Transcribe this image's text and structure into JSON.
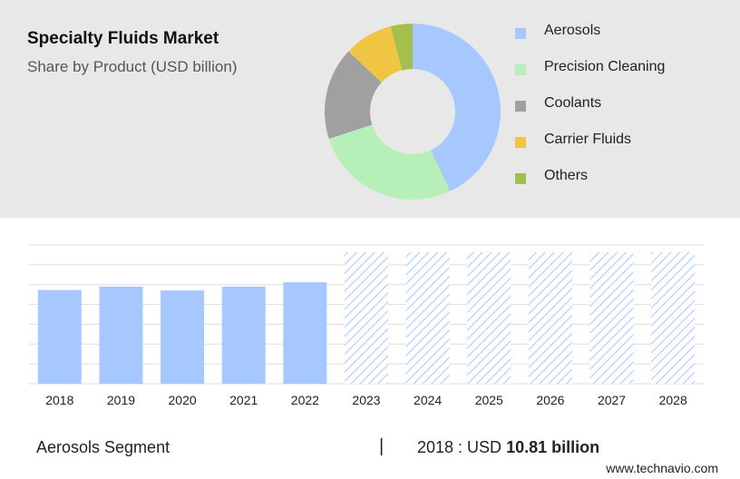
{
  "header": {
    "title": "Specialty Fluids Market",
    "subtitle": "Share by Product (USD billion)"
  },
  "chart_data": [
    {
      "type": "pie",
      "style": "donut",
      "title": "Specialty Fluids Market",
      "subtitle": "Share by Product (USD billion)",
      "legend_position": "right",
      "slices": [
        {
          "label": "Aerosols",
          "value": 43,
          "color": "#a6c8ff"
        },
        {
          "label": "Precision Cleaning",
          "value": 27,
          "color": "#b6f0b8"
        },
        {
          "label": "Coolants",
          "value": 17,
          "color": "#a0a0a0"
        },
        {
          "label": "Carrier Fluids",
          "value": 9,
          "color": "#f1c544"
        },
        {
          "label": "Others",
          "value": 4,
          "color": "#a3bf4e"
        }
      ]
    },
    {
      "type": "bar",
      "categories": [
        "2018",
        "2019",
        "2020",
        "2021",
        "2022",
        "2023",
        "2024",
        "2025",
        "2026",
        "2027",
        "2028"
      ],
      "values": [
        10.81,
        11.2,
        10.75,
        11.2,
        11.7,
        null,
        null,
        null,
        null,
        null,
        null
      ],
      "forecast_categories": [
        "2023",
        "2024",
        "2025",
        "2026",
        "2027",
        "2028"
      ],
      "ylim": [
        0,
        16
      ],
      "grid": true,
      "color": "#a6c8ff",
      "forecast_style": "hatched"
    }
  ],
  "footer": {
    "segment_label": "Aerosols Segment",
    "separator": "|",
    "value_prefix": "2018 : USD",
    "value_amount": "10.81 billion",
    "website": "www.technavio.com"
  }
}
